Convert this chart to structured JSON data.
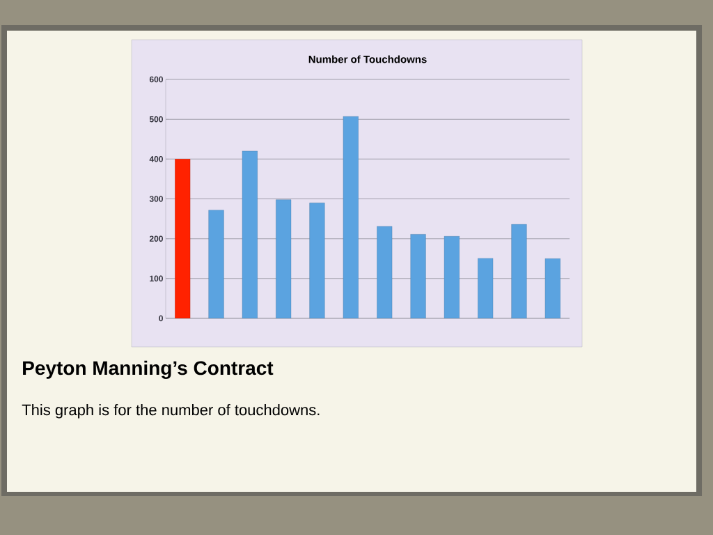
{
  "chart_data": {
    "type": "bar",
    "title": "Number of Touchdowns",
    "categories": [
      null,
      null,
      null,
      null,
      null,
      null,
      null,
      null,
      null,
      null,
      null,
      null
    ],
    "values": [
      400,
      272,
      420,
      298,
      290,
      507,
      231,
      211,
      206,
      151,
      236,
      150
    ],
    "colors": [
      "#ff2200",
      "#5ba3e0",
      "#5ba3e0",
      "#5ba3e0",
      "#5ba3e0",
      "#5ba3e0",
      "#5ba3e0",
      "#5ba3e0",
      "#5ba3e0",
      "#5ba3e0",
      "#5ba3e0",
      "#5ba3e0"
    ],
    "ylim": [
      0,
      600
    ],
    "yticks": [
      0,
      100,
      200,
      300,
      400,
      500,
      600
    ],
    "grid": "y",
    "annotations": [
      "Peyton Manning’s Contract",
      "This graph is for the number of touchdowns."
    ]
  }
}
